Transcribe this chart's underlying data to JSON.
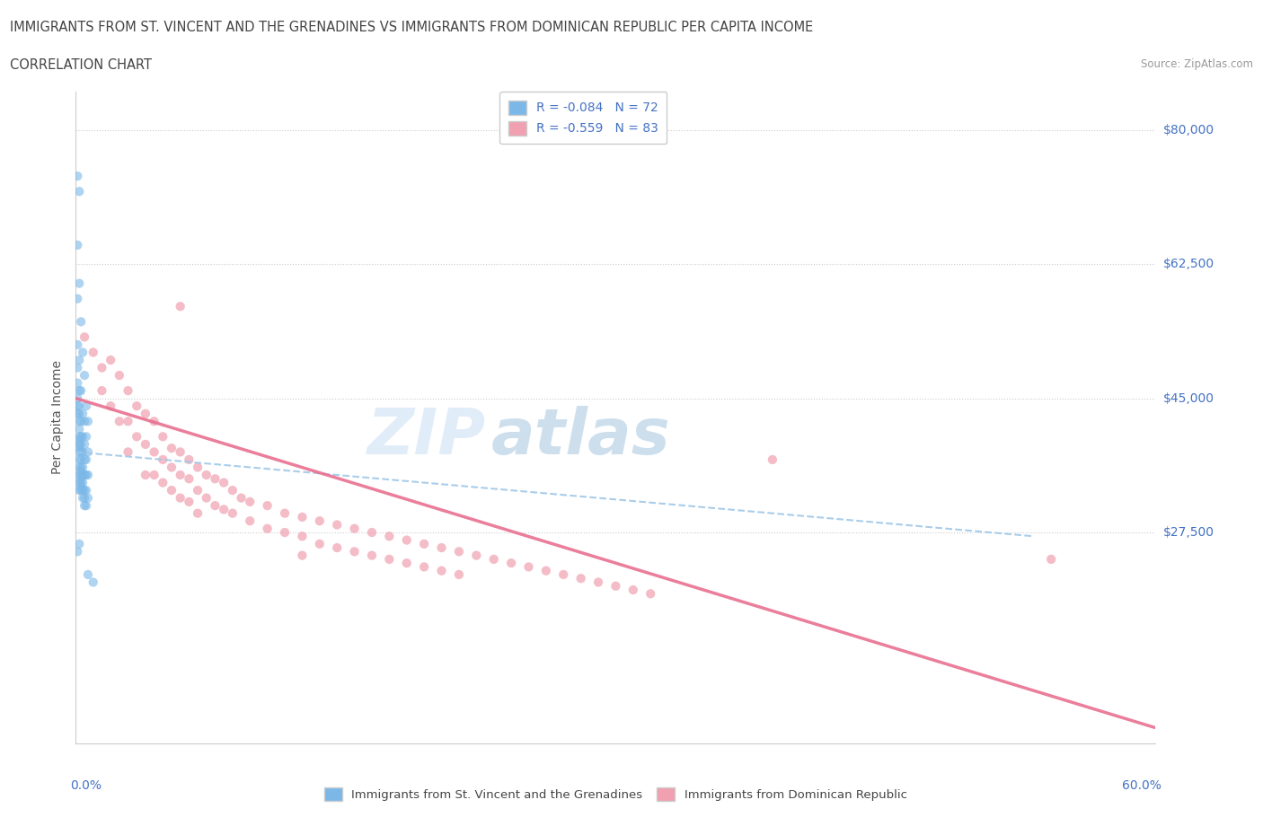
{
  "title_line1": "IMMIGRANTS FROM ST. VINCENT AND THE GRENADINES VS IMMIGRANTS FROM DOMINICAN REPUBLIC PER CAPITA INCOME",
  "title_line2": "CORRELATION CHART",
  "source": "Source: ZipAtlas.com",
  "ylabel": "Per Capita Income",
  "ytick_labels": [
    "$80,000",
    "$62,500",
    "$45,000",
    "$27,500"
  ],
  "ytick_values": [
    80000,
    62500,
    45000,
    27500
  ],
  "ylim": [
    0,
    85000
  ],
  "xlim": [
    0.0,
    0.62
  ],
  "watermark_zip": "ZIP",
  "watermark_atlas": "atlas",
  "color_blue_scatter": "#7BB8E8",
  "color_pink_scatter": "#F0A0B0",
  "color_blue_line": "#A0C8E8",
  "color_pink_line": "#E87090",
  "blue_points": [
    [
      0.001,
      74000
    ],
    [
      0.001,
      65000
    ],
    [
      0.001,
      58000
    ],
    [
      0.001,
      52000
    ],
    [
      0.001,
      49000
    ],
    [
      0.001,
      47000
    ],
    [
      0.001,
      45000
    ],
    [
      0.001,
      44000
    ],
    [
      0.001,
      43000
    ],
    [
      0.002,
      72000
    ],
    [
      0.002,
      60000
    ],
    [
      0.002,
      50000
    ],
    [
      0.002,
      46000
    ],
    [
      0.002,
      44000
    ],
    [
      0.002,
      43000
    ],
    [
      0.002,
      42000
    ],
    [
      0.002,
      41000
    ],
    [
      0.002,
      40000
    ],
    [
      0.002,
      39500
    ],
    [
      0.002,
      39000
    ],
    [
      0.002,
      38500
    ],
    [
      0.002,
      38000
    ],
    [
      0.002,
      37000
    ],
    [
      0.002,
      36000
    ],
    [
      0.002,
      35000
    ],
    [
      0.002,
      34000
    ],
    [
      0.002,
      33000
    ],
    [
      0.003,
      55000
    ],
    [
      0.003,
      46000
    ],
    [
      0.003,
      42000
    ],
    [
      0.003,
      40000
    ],
    [
      0.003,
      39000
    ],
    [
      0.003,
      38000
    ],
    [
      0.003,
      37000
    ],
    [
      0.003,
      36000
    ],
    [
      0.003,
      35500
    ],
    [
      0.003,
      35000
    ],
    [
      0.003,
      34500
    ],
    [
      0.003,
      34000
    ],
    [
      0.003,
      33500
    ],
    [
      0.003,
      33000
    ],
    [
      0.004,
      51000
    ],
    [
      0.004,
      43000
    ],
    [
      0.004,
      40000
    ],
    [
      0.004,
      38000
    ],
    [
      0.004,
      36000
    ],
    [
      0.004,
      35000
    ],
    [
      0.004,
      34000
    ],
    [
      0.004,
      33000
    ],
    [
      0.004,
      32000
    ],
    [
      0.005,
      48000
    ],
    [
      0.005,
      42000
    ],
    [
      0.005,
      39000
    ],
    [
      0.005,
      37000
    ],
    [
      0.005,
      35000
    ],
    [
      0.005,
      33000
    ],
    [
      0.005,
      32000
    ],
    [
      0.005,
      31000
    ],
    [
      0.006,
      44000
    ],
    [
      0.006,
      40000
    ],
    [
      0.006,
      37000
    ],
    [
      0.006,
      35000
    ],
    [
      0.006,
      33000
    ],
    [
      0.006,
      31000
    ],
    [
      0.007,
      42000
    ],
    [
      0.007,
      38000
    ],
    [
      0.007,
      35000
    ],
    [
      0.007,
      32000
    ],
    [
      0.007,
      22000
    ],
    [
      0.01,
      21000
    ],
    [
      0.001,
      25000
    ],
    [
      0.002,
      26000
    ]
  ],
  "pink_points": [
    [
      0.005,
      53000
    ],
    [
      0.01,
      51000
    ],
    [
      0.015,
      49000
    ],
    [
      0.015,
      46000
    ],
    [
      0.02,
      50000
    ],
    [
      0.02,
      44000
    ],
    [
      0.025,
      48000
    ],
    [
      0.025,
      42000
    ],
    [
      0.03,
      46000
    ],
    [
      0.03,
      42000
    ],
    [
      0.03,
      38000
    ],
    [
      0.035,
      44000
    ],
    [
      0.035,
      40000
    ],
    [
      0.04,
      43000
    ],
    [
      0.04,
      39000
    ],
    [
      0.04,
      35000
    ],
    [
      0.045,
      42000
    ],
    [
      0.045,
      38000
    ],
    [
      0.045,
      35000
    ],
    [
      0.05,
      40000
    ],
    [
      0.05,
      37000
    ],
    [
      0.05,
      34000
    ],
    [
      0.055,
      38500
    ],
    [
      0.055,
      36000
    ],
    [
      0.055,
      33000
    ],
    [
      0.06,
      38000
    ],
    [
      0.06,
      35000
    ],
    [
      0.06,
      32000
    ],
    [
      0.065,
      37000
    ],
    [
      0.065,
      34500
    ],
    [
      0.065,
      31500
    ],
    [
      0.07,
      36000
    ],
    [
      0.07,
      33000
    ],
    [
      0.07,
      30000
    ],
    [
      0.075,
      35000
    ],
    [
      0.075,
      32000
    ],
    [
      0.08,
      34500
    ],
    [
      0.08,
      31000
    ],
    [
      0.085,
      34000
    ],
    [
      0.085,
      30500
    ],
    [
      0.09,
      33000
    ],
    [
      0.09,
      30000
    ],
    [
      0.095,
      32000
    ],
    [
      0.1,
      31500
    ],
    [
      0.1,
      29000
    ],
    [
      0.11,
      31000
    ],
    [
      0.11,
      28000
    ],
    [
      0.12,
      30000
    ],
    [
      0.12,
      27500
    ],
    [
      0.13,
      29500
    ],
    [
      0.13,
      27000
    ],
    [
      0.13,
      24500
    ],
    [
      0.14,
      29000
    ],
    [
      0.14,
      26000
    ],
    [
      0.15,
      28500
    ],
    [
      0.15,
      25500
    ],
    [
      0.16,
      28000
    ],
    [
      0.16,
      25000
    ],
    [
      0.17,
      27500
    ],
    [
      0.17,
      24500
    ],
    [
      0.18,
      27000
    ],
    [
      0.18,
      24000
    ],
    [
      0.19,
      26500
    ],
    [
      0.19,
      23500
    ],
    [
      0.2,
      26000
    ],
    [
      0.2,
      23000
    ],
    [
      0.21,
      25500
    ],
    [
      0.21,
      22500
    ],
    [
      0.22,
      25000
    ],
    [
      0.22,
      22000
    ],
    [
      0.23,
      24500
    ],
    [
      0.24,
      24000
    ],
    [
      0.25,
      23500
    ],
    [
      0.26,
      23000
    ],
    [
      0.27,
      22500
    ],
    [
      0.28,
      22000
    ],
    [
      0.29,
      21500
    ],
    [
      0.3,
      21000
    ],
    [
      0.31,
      20500
    ],
    [
      0.32,
      20000
    ],
    [
      0.33,
      19500
    ],
    [
      0.56,
      24000
    ],
    [
      0.06,
      57000
    ],
    [
      0.4,
      37000
    ]
  ],
  "title_color": "#444444",
  "source_color": "#999999",
  "axis_color": "#4472C4",
  "ylabel_color": "#555555",
  "grid_color": "#CCCCCC",
  "background_color": "#FFFFFF"
}
